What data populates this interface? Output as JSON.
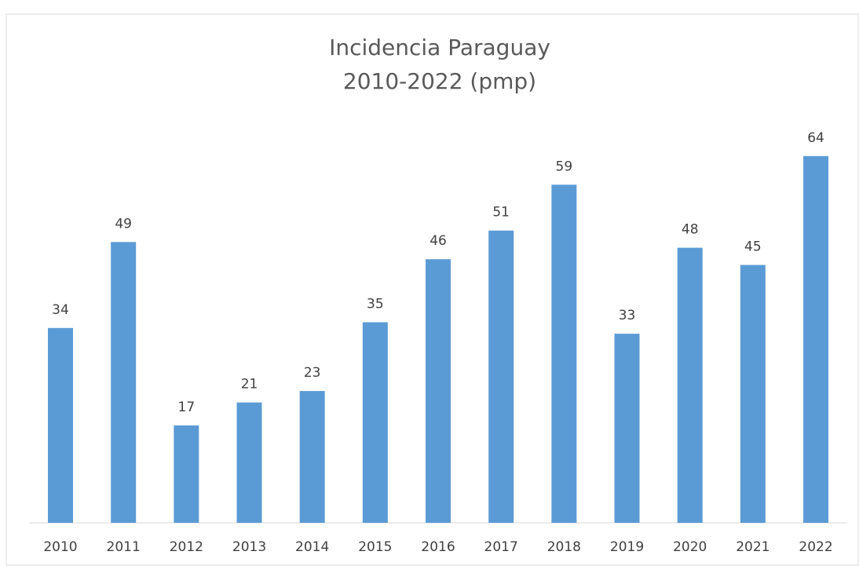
{
  "chart_data": {
    "type": "bar",
    "title": "Incidencia Paraguay",
    "subtitle": "2010-2022 (pmp)",
    "categories": [
      "2010",
      "2011",
      "2012",
      "2013",
      "2014",
      "2015",
      "2016",
      "2017",
      "2018",
      "2019",
      "2020",
      "2021",
      "2022"
    ],
    "values": [
      34,
      49,
      17,
      21,
      23,
      35,
      46,
      51,
      59,
      33,
      48,
      45,
      64
    ],
    "color": "#5b9bd5",
    "ylim": [
      0,
      70
    ],
    "grid": false
  }
}
